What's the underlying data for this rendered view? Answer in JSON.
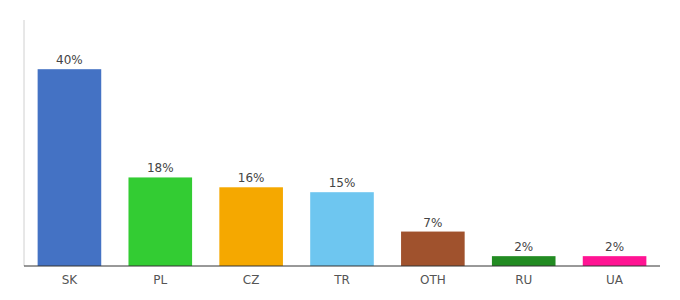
{
  "chart_data": {
    "type": "bar",
    "categories": [
      "SK",
      "PL",
      "CZ",
      "TR",
      "OTH",
      "RU",
      "UA"
    ],
    "values": [
      40,
      18,
      16,
      15,
      7,
      2,
      2
    ],
    "value_labels": [
      "40%",
      "18%",
      "16%",
      "15%",
      "7%",
      "2%",
      "2%"
    ],
    "colors": [
      "#4472c4",
      "#33cc33",
      "#f5a800",
      "#6ec6f0",
      "#a0522d",
      "#228b22",
      "#ff1493"
    ],
    "ylim": [
      0,
      50
    ],
    "data_labels": true,
    "tick_labels": "x",
    "grid": false
  }
}
